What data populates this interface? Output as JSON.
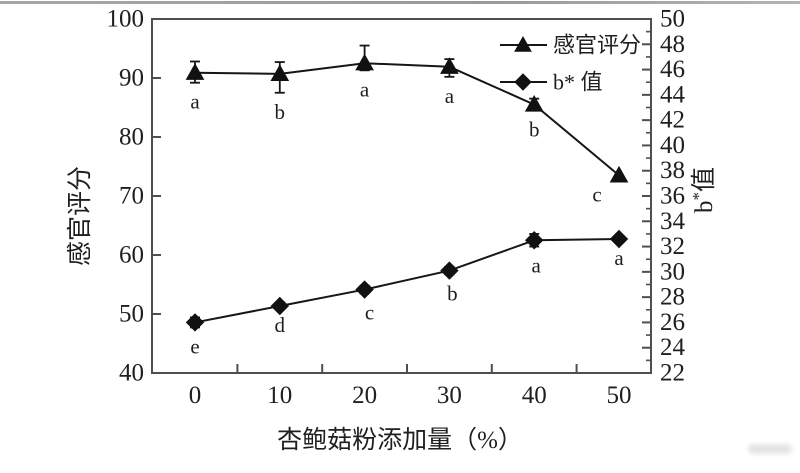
{
  "figure": {
    "background": "#ffffff"
  },
  "chart_data": {
    "type": "line",
    "x": [
      0,
      10,
      20,
      30,
      40,
      50
    ],
    "x_axis": {
      "label": "杏鲍菇粉添加量（%）",
      "tick_labels": [
        "0",
        "10",
        "20",
        "30",
        "40",
        "50"
      ],
      "minor_ticks": [
        5,
        15,
        25,
        35,
        45
      ],
      "range": [
        0,
        50
      ]
    },
    "left_axis": {
      "label": "感官评分",
      "range": [
        40,
        100
      ],
      "ticks": [
        40,
        50,
        60,
        70,
        80,
        90,
        100
      ]
    },
    "right_axis": {
      "label": "b*值",
      "range": [
        22,
        50
      ],
      "ticks": [
        22,
        24,
        26,
        28,
        30,
        32,
        34,
        36,
        38,
        40,
        42,
        44,
        46,
        48,
        50
      ]
    },
    "series": [
      {
        "name": "感官评分",
        "axis": "left",
        "marker": "triangle",
        "values": [
          90.9,
          90.7,
          92.5,
          91.9,
          85.5,
          73.5
        ],
        "err_up": [
          1.9,
          2.0,
          3.0,
          1.3,
          1.0,
          0
        ],
        "err_down": [
          1.7,
          3.2,
          1.2,
          1.7,
          1.0,
          0
        ],
        "letters": [
          "a",
          "b",
          "a",
          "a",
          "b",
          "c"
        ],
        "letter_dx": [
          0,
          0,
          0,
          0,
          0,
          -22
        ]
      },
      {
        "name": "b* 值",
        "axis": "right",
        "marker": "diamond",
        "values": [
          26.0,
          27.3,
          28.6,
          30.1,
          32.5,
          32.6
        ],
        "err_up": [
          0.4,
          0,
          0.3,
          0.3,
          0.5,
          0
        ],
        "err_down": [
          0.4,
          0,
          0.3,
          0.3,
          0.5,
          0
        ],
        "letters": [
          "e",
          "d",
          "c",
          "b",
          "a",
          "a"
        ],
        "letter_dx": [
          0,
          0,
          5,
          3,
          2,
          0
        ]
      }
    ],
    "legend": {
      "position": "top-right",
      "items": [
        {
          "label": "感官评分",
          "marker": "triangle"
        },
        {
          "label": "b* 值",
          "marker": "diamond"
        }
      ]
    },
    "grid": false,
    "colors": {
      "line": "#161616",
      "marker": "#111111",
      "axis": "#4f4f4f",
      "text": "#1f1f1f"
    }
  }
}
